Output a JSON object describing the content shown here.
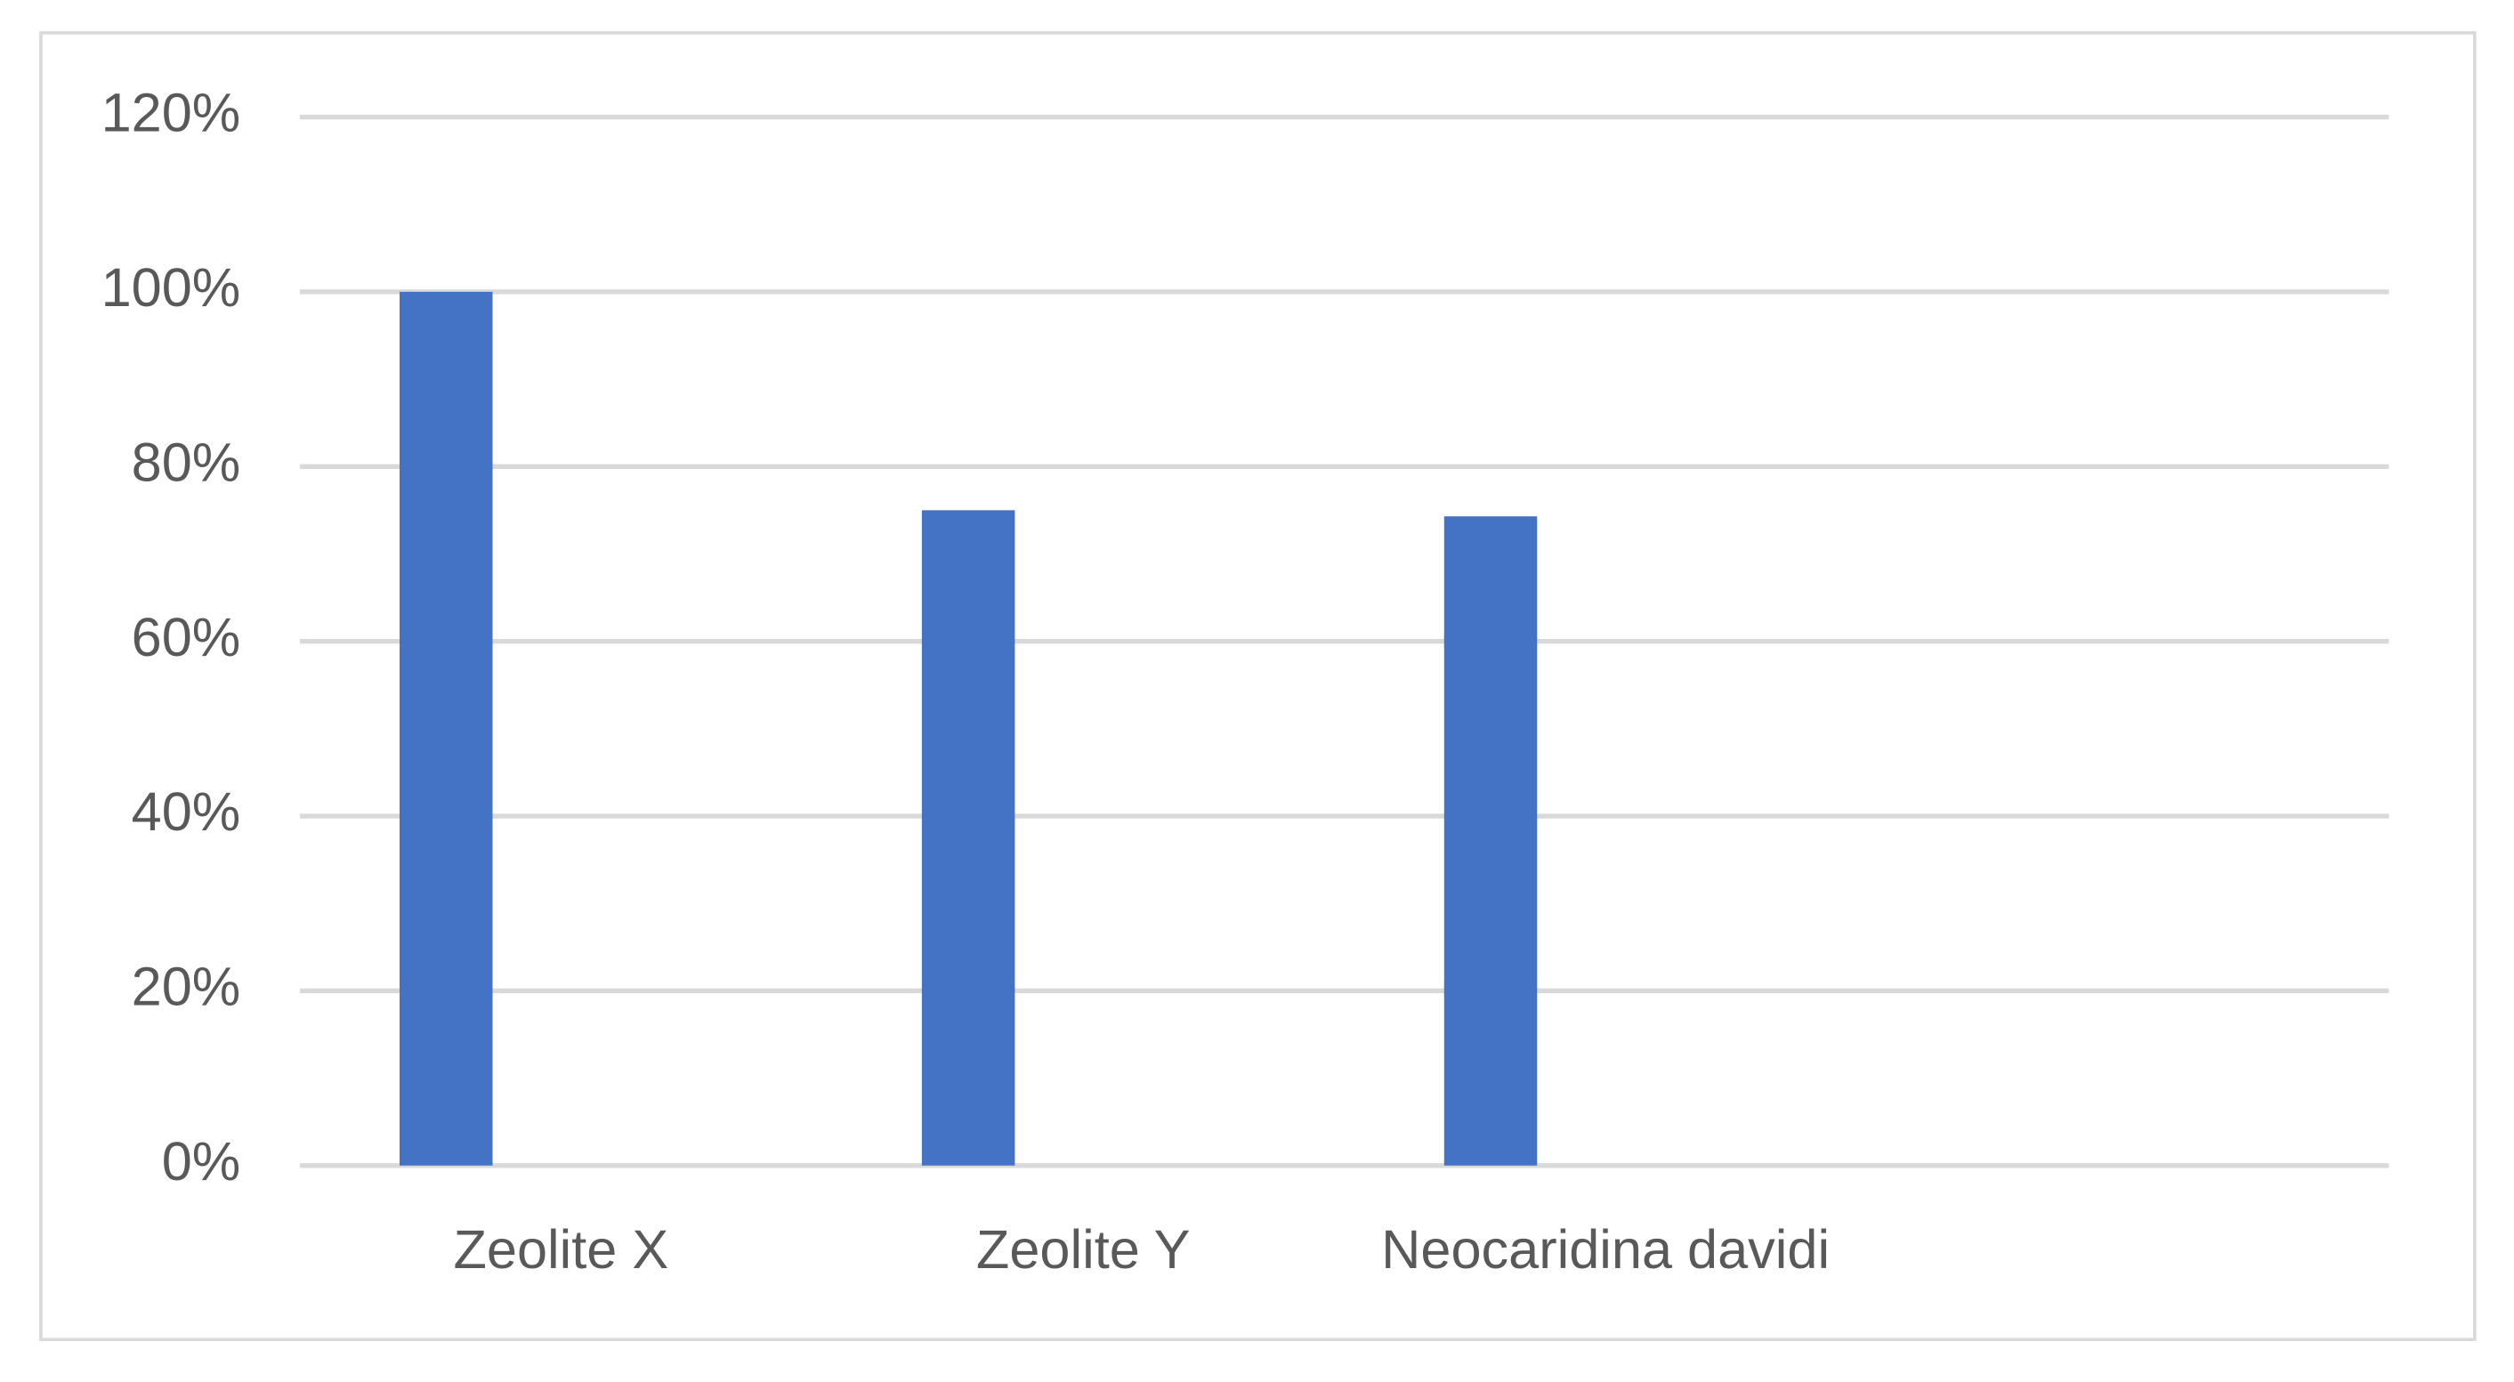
{
  "chart_data": {
    "type": "bar",
    "categories": [
      "Zeolite X",
      "Zeolite Y",
      "Neocaridina davidi",
      null
    ],
    "values": [
      100,
      75,
      74.3,
      null
    ],
    "color": "#4472c4",
    "ylim": [
      0,
      120
    ],
    "yticks": [
      {
        "value": 0,
        "label": "0%"
      },
      {
        "value": 20,
        "label": "20%"
      },
      {
        "value": 40,
        "label": "40%"
      },
      {
        "value": 60,
        "label": "60%"
      },
      {
        "value": 80,
        "label": "80%"
      },
      {
        "value": 100,
        "label": "100%"
      },
      {
        "value": 120,
        "label": "120%"
      }
    ],
    "grid": true
  }
}
